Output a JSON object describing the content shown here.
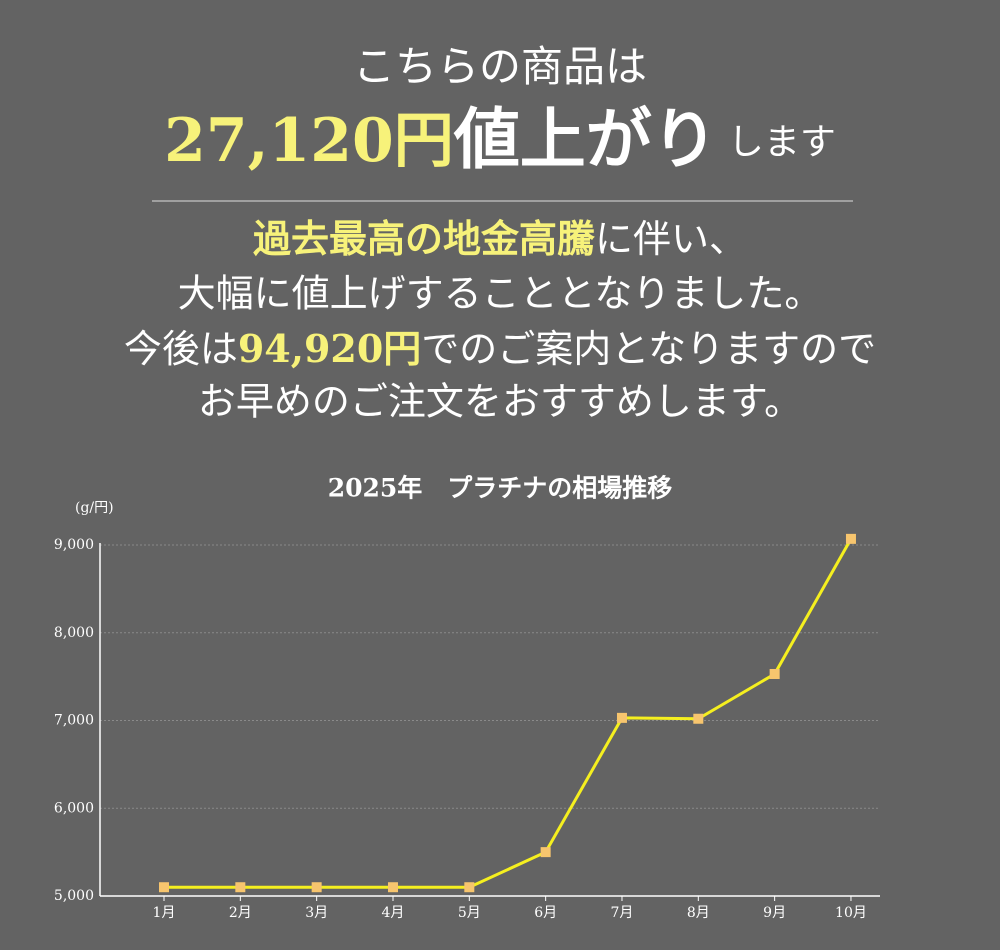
{
  "header": {
    "line1": "こちらの商品は",
    "price_up": "27,120円",
    "rise": "値上がり",
    "suffix": "します",
    "msg1_highlight": "過去最高の地金高騰",
    "msg1_rest": "に伴い、",
    "msg2": "大幅に値上げすることとなりました。",
    "msg3_a": "今後は",
    "msg3_price": "94,920円",
    "msg3_b": "でのご案内となりますので",
    "msg4": "お早めのご注文をおすすめします。"
  },
  "chart_data": {
    "type": "line",
    "title": "2025年　プラチナの相場推移",
    "y_label": "(g/円)",
    "categories": [
      "1月",
      "2月",
      "3月",
      "4月",
      "5月",
      "6月",
      "7月",
      "8月",
      "9月",
      "10月"
    ],
    "values": [
      5100,
      5100,
      5100,
      5100,
      5100,
      5500,
      7030,
      7020,
      7530,
      9070
    ],
    "color": "#f5ef1f",
    "marker_color": "#f7c56e",
    "ylim": [
      5000,
      9000
    ],
    "yticks": [
      {
        "value": 5000,
        "label": "5,000"
      },
      {
        "value": 6000,
        "label": "6,000"
      },
      {
        "value": 7000,
        "label": "7,000"
      },
      {
        "value": 8000,
        "label": "8,000"
      },
      {
        "value": 9000,
        "label": "9,000"
      }
    ],
    "grid": true
  }
}
